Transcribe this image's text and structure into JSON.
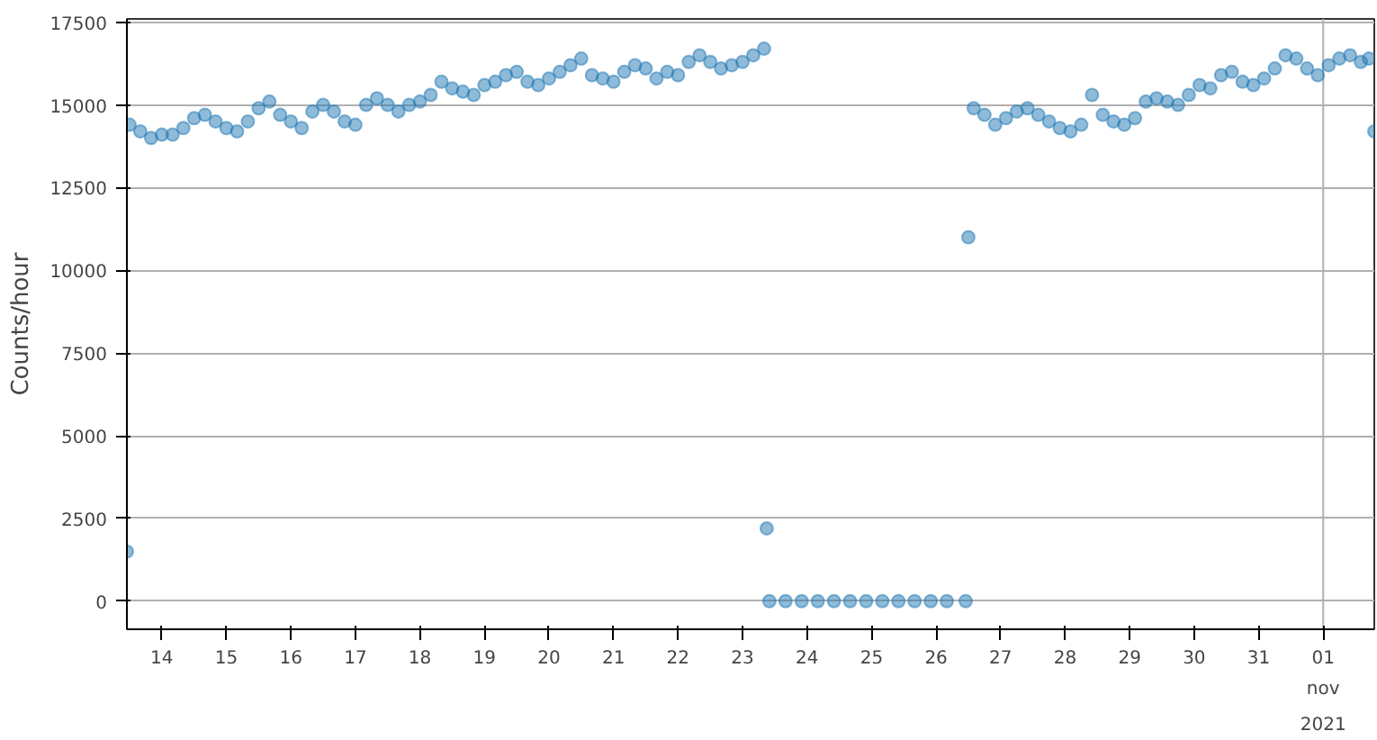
{
  "chart_data": {
    "type": "scatter",
    "ylabel": "Counts/hour",
    "marker": "circle",
    "grid": "y",
    "color": "#1f77b4",
    "xlim": [
      "2021-10-13T11:00",
      "2021-11-01T19:00"
    ],
    "ylim": [
      -850,
      17600
    ],
    "yticks": [
      0,
      2500,
      5000,
      7500,
      10000,
      12500,
      15000,
      17500
    ],
    "xticks": [
      {
        "value": "2021-10-14",
        "label": "14"
      },
      {
        "value": "2021-10-15",
        "label": "15"
      },
      {
        "value": "2021-10-16",
        "label": "16"
      },
      {
        "value": "2021-10-17",
        "label": "17"
      },
      {
        "value": "2021-10-18",
        "label": "18"
      },
      {
        "value": "2021-10-19",
        "label": "19"
      },
      {
        "value": "2021-10-20",
        "label": "20"
      },
      {
        "value": "2021-10-21",
        "label": "21"
      },
      {
        "value": "2021-10-22",
        "label": "22"
      },
      {
        "value": "2021-10-23",
        "label": "23"
      },
      {
        "value": "2021-10-24",
        "label": "24"
      },
      {
        "value": "2021-10-25",
        "label": "25"
      },
      {
        "value": "2021-10-26",
        "label": "26"
      },
      {
        "value": "2021-10-27",
        "label": "27"
      },
      {
        "value": "2021-10-28",
        "label": "28"
      },
      {
        "value": "2021-10-29",
        "label": "29"
      },
      {
        "value": "2021-10-30",
        "label": "30"
      },
      {
        "value": "2021-10-31",
        "label": "31"
      },
      {
        "value": "2021-11-01",
        "label": "01\nnov\n2021"
      }
    ],
    "ref_lines": [
      {
        "axis": "x",
        "value": "2021-11-01",
        "label": null,
        "color": "#b0b0b0"
      }
    ],
    "x": [
      "2021-10-13T11:00",
      "2021-10-13T12:00",
      "2021-10-13T16:00",
      "2021-10-13T20:00",
      "2021-10-14T00:00",
      "2021-10-14T04:00",
      "2021-10-14T08:00",
      "2021-10-14T12:00",
      "2021-10-14T16:00",
      "2021-10-14T20:00",
      "2021-10-15T00:00",
      "2021-10-15T04:00",
      "2021-10-15T08:00",
      "2021-10-15T12:00",
      "2021-10-15T16:00",
      "2021-10-15T20:00",
      "2021-10-16T00:00",
      "2021-10-16T04:00",
      "2021-10-16T08:00",
      "2021-10-16T12:00",
      "2021-10-16T16:00",
      "2021-10-16T20:00",
      "2021-10-17T00:00",
      "2021-10-17T04:00",
      "2021-10-17T08:00",
      "2021-10-17T12:00",
      "2021-10-17T16:00",
      "2021-10-17T20:00",
      "2021-10-18T00:00",
      "2021-10-18T04:00",
      "2021-10-18T08:00",
      "2021-10-18T12:00",
      "2021-10-18T16:00",
      "2021-10-18T20:00",
      "2021-10-19T00:00",
      "2021-10-19T04:00",
      "2021-10-19T08:00",
      "2021-10-19T12:00",
      "2021-10-19T16:00",
      "2021-10-19T20:00",
      "2021-10-20T00:00",
      "2021-10-20T04:00",
      "2021-10-20T08:00",
      "2021-10-20T12:00",
      "2021-10-20T16:00",
      "2021-10-20T20:00",
      "2021-10-21T00:00",
      "2021-10-21T04:00",
      "2021-10-21T08:00",
      "2021-10-21T12:00",
      "2021-10-21T16:00",
      "2021-10-21T20:00",
      "2021-10-22T00:00",
      "2021-10-22T04:00",
      "2021-10-22T08:00",
      "2021-10-22T12:00",
      "2021-10-22T16:00",
      "2021-10-22T20:00",
      "2021-10-23T00:00",
      "2021-10-23T04:00",
      "2021-10-23T08:00",
      "2021-10-23T09:00",
      "2021-10-23T10:00",
      "2021-10-23T16:00",
      "2021-10-23T22:00",
      "2021-10-24T04:00",
      "2021-10-24T10:00",
      "2021-10-24T16:00",
      "2021-10-24T22:00",
      "2021-10-25T04:00",
      "2021-10-25T10:00",
      "2021-10-25T16:00",
      "2021-10-25T22:00",
      "2021-10-26T04:00",
      "2021-10-26T11:00",
      "2021-10-26T12:00",
      "2021-10-26T14:00",
      "2021-10-26T18:00",
      "2021-10-26T22:00",
      "2021-10-27T02:00",
      "2021-10-27T06:00",
      "2021-10-27T10:00",
      "2021-10-27T14:00",
      "2021-10-27T18:00",
      "2021-10-27T22:00",
      "2021-10-28T02:00",
      "2021-10-28T06:00",
      "2021-10-28T10:00",
      "2021-10-28T14:00",
      "2021-10-28T18:00",
      "2021-10-28T22:00",
      "2021-10-29T02:00",
      "2021-10-29T06:00",
      "2021-10-29T10:00",
      "2021-10-29T14:00",
      "2021-10-29T18:00",
      "2021-10-29T22:00",
      "2021-10-30T02:00",
      "2021-10-30T06:00",
      "2021-10-30T10:00",
      "2021-10-30T14:00",
      "2021-10-30T18:00",
      "2021-10-30T22:00",
      "2021-10-31T02:00",
      "2021-10-31T06:00",
      "2021-10-31T10:00",
      "2021-10-31T14:00",
      "2021-10-31T18:00",
      "2021-10-31T22:00",
      "2021-11-01T02:00",
      "2021-11-01T06:00",
      "2021-11-01T10:00",
      "2021-11-01T14:00",
      "2021-11-01T17:00",
      "2021-11-01T19:00"
    ],
    "values": [
      1500,
      14400,
      14200,
      14000,
      14100,
      14100,
      14300,
      14600,
      14700,
      14500,
      14300,
      14200,
      14500,
      14900,
      15100,
      14700,
      14500,
      14300,
      14800,
      15000,
      14800,
      14500,
      14400,
      15000,
      15200,
      15000,
      14800,
      15000,
      15100,
      15300,
      15700,
      15500,
      15400,
      15300,
      15600,
      15700,
      15900,
      16000,
      15700,
      15600,
      15800,
      16000,
      16200,
      16400,
      15900,
      15800,
      15700,
      16000,
      16200,
      16100,
      15800,
      16000,
      15900,
      16300,
      16500,
      16300,
      16100,
      16200,
      16300,
      16500,
      16700,
      2200,
      0,
      0,
      0,
      0,
      0,
      0,
      0,
      0,
      0,
      0,
      0,
      0,
      0,
      11000,
      14900,
      14700,
      14400,
      14600,
      14800,
      14900,
      14700,
      14500,
      14300,
      14200,
      14400,
      15300,
      14700,
      14500,
      14400,
      14600,
      15100,
      15200,
      15100,
      15000,
      15300,
      15600,
      15500,
      15900,
      16000,
      15700,
      15600,
      15800,
      16100,
      16500,
      16400,
      16100,
      15900,
      16200,
      16400,
      16500,
      16300,
      16400,
      14200
    ]
  }
}
